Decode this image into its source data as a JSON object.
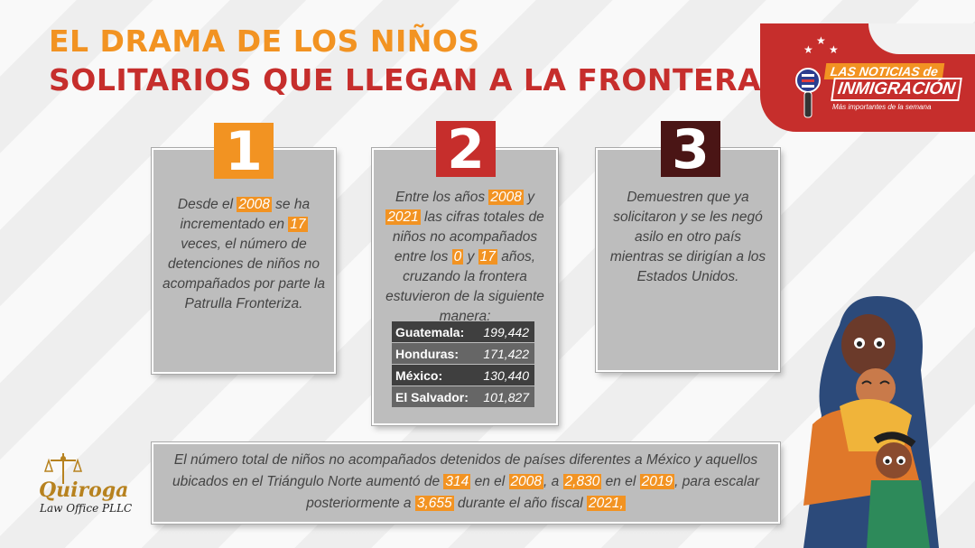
{
  "title": {
    "line1": "EL DRAMA DE LOS NIÑOS",
    "line2": "SOLITARIOS QUE LLEGAN A LA FRONTERA"
  },
  "brand": {
    "line1": "LAS NOTICIAS de",
    "line2": "INMIGRACIÓN",
    "line3": "Más importantes de la semana"
  },
  "cards": [
    {
      "number": "1",
      "text": [
        {
          "t": "Desde el "
        },
        {
          "t": "2008",
          "hl": true
        },
        {
          "t": " se ha incrementado en "
        },
        {
          "t": "17",
          "hl": true
        },
        {
          "t": " veces, el número de detenciones de niños no acompañados por parte la Patrulla Fronteriza."
        }
      ]
    },
    {
      "number": "2",
      "text": [
        {
          "t": "Entre los años "
        },
        {
          "t": "2008",
          "hl": true
        },
        {
          "t": " y "
        },
        {
          "t": "2021",
          "hl": true
        },
        {
          "t": " las cifras totales de niños no acompañados entre los "
        },
        {
          "t": "0",
          "hl": true
        },
        {
          "t": " y "
        },
        {
          "t": "17",
          "hl": true
        },
        {
          "t": " años, cruzando la frontera estuvieron de la siguiente manera:"
        }
      ],
      "table": [
        {
          "country": "Guatemala:",
          "value": "199,442"
        },
        {
          "country": "Honduras:",
          "value": "171,422"
        },
        {
          "country": "México:",
          "value": "130,440"
        },
        {
          "country": "El Salvador:",
          "value": "101,827"
        }
      ]
    },
    {
      "number": "3",
      "text": [
        {
          "t": "Demuestren que ya solicitaron y se les negó asilo en otro país mientras se dirigían a los Estados Unidos."
        }
      ]
    }
  ],
  "bottom": {
    "text": [
      {
        "t": "El número total de niños no acompañados detenidos de países diferentes a México y aquellos ubicados en el Triángulo Norte aumentó de "
      },
      {
        "t": "314",
        "hl": true
      },
      {
        "t": " en el "
      },
      {
        "t": "2008",
        "hl": true
      },
      {
        "t": ", a "
      },
      {
        "t": "2,830",
        "hl": true
      },
      {
        "t": " en el "
      },
      {
        "t": "2019",
        "hl": true
      },
      {
        "t": ", para escalar posteriormente a "
      },
      {
        "t": "3,655",
        "hl": true
      },
      {
        "t": " durante el año fiscal "
      },
      {
        "t": "2021,",
        "hl": true
      }
    ]
  },
  "law": {
    "name": "Quiroga",
    "sub": "Law Office PLLC"
  },
  "colors": {
    "orange": "#f29322",
    "red": "#c62e2c",
    "darkred": "#4a1515",
    "box": "#bdbdbd"
  }
}
